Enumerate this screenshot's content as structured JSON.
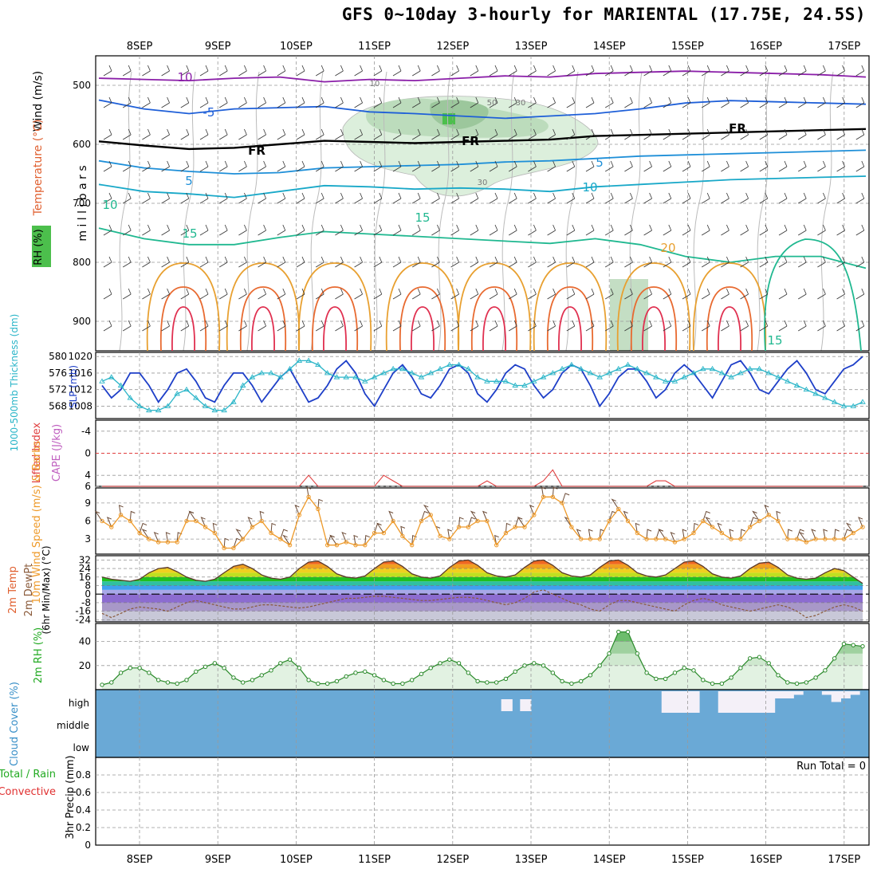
{
  "title": "GFS 0~10day 3-hourly for MARIENTAL (17.75E, 24.5S)",
  "dates": [
    "8SEP",
    "9SEP",
    "10SEP",
    "11SEP",
    "12SEP",
    "13SEP",
    "14SEP",
    "15SEP",
    "16SEP",
    "17SEP"
  ],
  "colors": {
    "grid": "#999999",
    "slp": "#1e3fc8",
    "thickness": "#2ab5c8",
    "lifted_index": "#e04040",
    "wind": "#ee9a2a",
    "barb": "#6b4a35",
    "rh_fill": "#a8d8a8",
    "cloud": "#6aa9d6",
    "precip_total": "#22aa22",
    "precip_conv": "#e03030"
  },
  "chart_data": [
    {
      "type": "heatmap",
      "name": "upper_air",
      "ylabel_parts": [
        "Wind (m/s)",
        "Temperature (°C)",
        "RH (%)"
      ],
      "ylabel_center": "m i l l i b a r s",
      "y_ticks": [
        "500",
        "600",
        "700",
        "800",
        "900"
      ],
      "ylim": [
        450,
        950
      ],
      "contour_labels": [
        "10",
        "-5",
        "FR",
        "FR",
        "FR",
        "5",
        "5",
        "10",
        "10",
        "15",
        "15",
        "15",
        "20",
        "50",
        "30",
        "30",
        "10"
      ],
      "temp_isotherms": [
        {
          "label": "-10",
          "level": [
            488,
            490,
            492,
            488,
            486,
            494,
            490,
            492,
            488,
            484,
            486,
            480,
            478,
            476,
            478,
            480,
            482,
            486
          ]
        },
        {
          "label": "-5",
          "level": [
            525,
            540,
            548,
            540,
            538,
            536,
            545,
            548,
            552,
            556,
            552,
            548,
            540,
            530,
            526,
            528,
            530,
            532
          ]
        },
        {
          "label": "0 (FR)",
          "level": [
            595,
            602,
            608,
            606,
            600,
            594,
            596,
            598,
            596,
            594,
            592,
            586,
            584,
            582,
            580,
            578,
            576,
            574
          ]
        },
        {
          "label": "5",
          "level": [
            628,
            640,
            646,
            650,
            648,
            640,
            638,
            636,
            634,
            630,
            628,
            624,
            620,
            618,
            616,
            614,
            612,
            610
          ]
        },
        {
          "label": "10",
          "level": [
            668,
            680,
            684,
            690,
            680,
            670,
            672,
            676,
            674,
            676,
            680,
            672,
            668,
            664,
            660,
            658,
            656,
            654
          ]
        },
        {
          "label": "15",
          "level": [
            742,
            760,
            770,
            770,
            758,
            748,
            752,
            756,
            760,
            764,
            768,
            760,
            770,
            790,
            800,
            790,
            790,
            810
          ]
        }
      ]
    },
    {
      "type": "line",
      "name": "slp_thickness",
      "ylabel": "SLP (mb)",
      "ylabel2": "1000-500mb Thickness (dm)",
      "y_ticks": [
        "1020",
        "1016",
        "1012",
        "1008"
      ],
      "y2_ticks": [
        "580",
        "576",
        "572",
        "568"
      ],
      "ylim": [
        1005,
        1021
      ],
      "series": [
        {
          "name": "SLP",
          "values": [
            1013,
            1010,
            1012,
            1016,
            1016,
            1013,
            1009,
            1012,
            1016,
            1017,
            1014,
            1010,
            1009,
            1013,
            1016,
            1016,
            1013,
            1009,
            1012,
            1015,
            1017,
            1013,
            1009,
            1010,
            1013,
            1017,
            1019,
            1016,
            1011,
            1008,
            1012,
            1016,
            1018,
            1015,
            1011,
            1010,
            1013,
            1017,
            1018,
            1016,
            1011,
            1009,
            1012,
            1016,
            1018,
            1017,
            1013,
            1010,
            1012,
            1016,
            1018,
            1017,
            1013,
            1008,
            1011,
            1015,
            1017,
            1017,
            1014,
            1010,
            1012,
            1016,
            1018,
            1016,
            1013,
            1010,
            1014,
            1018,
            1019,
            1016,
            1012,
            1011,
            1014,
            1017,
            1019,
            1016,
            1012,
            1011,
            1014,
            1017,
            1018,
            1020
          ]
        },
        {
          "name": "Thickness",
          "values": [
            575,
            576,
            574,
            571,
            569,
            568,
            568,
            569,
            572,
            573,
            571,
            569,
            568,
            568,
            570,
            574,
            576,
            577,
            577,
            576,
            578,
            580,
            580,
            579,
            577,
            576,
            576,
            576,
            575,
            576,
            577,
            578,
            578,
            577,
            576,
            577,
            578,
            579,
            579,
            578,
            576,
            575,
            575,
            575,
            574,
            574,
            575,
            576,
            577,
            578,
            579,
            578,
            577,
            576,
            577,
            578,
            579,
            578,
            577,
            576,
            575,
            575,
            576,
            577,
            578,
            578,
            577,
            576,
            577,
            578,
            578,
            577,
            576,
            575,
            574,
            573,
            572,
            571,
            570,
            569,
            569,
            570
          ]
        }
      ]
    },
    {
      "type": "line",
      "name": "instability",
      "ylabel": "Lifted Index",
      "ylabel2": "CAPE (J/kg)",
      "y_ticks": [
        "-4",
        "0",
        "4",
        "6"
      ],
      "ylim": [
        -6,
        6
      ],
      "series": [
        {
          "name": "Lifted Index",
          "values": [
            6,
            6,
            6,
            6,
            6,
            6,
            6,
            6,
            6,
            6,
            6,
            6,
            6,
            6,
            6,
            6,
            6,
            6,
            6,
            6,
            6,
            6,
            4,
            6,
            6,
            6,
            6,
            6,
            6,
            6,
            4,
            5,
            6,
            6,
            6,
            6,
            6,
            6,
            6,
            6,
            6,
            5,
            6,
            6,
            6,
            6,
            6,
            5,
            3,
            6,
            6,
            6,
            6,
            6,
            6,
            6,
            6,
            6,
            6,
            5,
            5,
            6,
            6,
            6,
            6,
            6,
            6,
            6,
            6,
            6,
            6,
            6,
            6,
            6,
            6,
            6,
            6,
            6,
            6,
            6,
            6,
            6
          ]
        }
      ]
    },
    {
      "type": "line",
      "name": "wind10m",
      "ylabel": "10m Wind Speed (m/s) & Barbs",
      "y_ticks": [
        "9",
        "6",
        "3"
      ],
      "ylim": [
        0.5,
        11.5
      ],
      "series": [
        {
          "name": "Wind Speed",
          "values": [
            6,
            5,
            7,
            6,
            4,
            3,
            2.5,
            2.5,
            2.5,
            6,
            6,
            5,
            4,
            1.5,
            1.5,
            3,
            5,
            6,
            4,
            3,
            2,
            7,
            10,
            8,
            2,
            2,
            2.5,
            2,
            2,
            4,
            4,
            6,
            3.5,
            2,
            6,
            7,
            3.5,
            3,
            5,
            5,
            6,
            6,
            2,
            4,
            5,
            5,
            7,
            10,
            10,
            9,
            5,
            3,
            3,
            3,
            6,
            8,
            6,
            4,
            3,
            3,
            3,
            2.5,
            3,
            4,
            6,
            5,
            4,
            3,
            3,
            5,
            6,
            7,
            6,
            3,
            3,
            2.5,
            3,
            3,
            3,
            3,
            4,
            5
          ]
        }
      ]
    },
    {
      "type": "area",
      "name": "temp2m",
      "ylabel": "2m Temp",
      "ylabel2": "2m DewPt",
      "ylabel3": "(6hr Min/Max) (°C)",
      "y_ticks": [
        "32",
        "24",
        "16",
        "8",
        "0",
        "-8",
        "-16",
        "-24"
      ],
      "ylim": [
        -26,
        36
      ],
      "series": [
        {
          "name": "2m Temp",
          "values": [
            16,
            14,
            13,
            12,
            14,
            20,
            24,
            25,
            21,
            16,
            13,
            12,
            14,
            20,
            26,
            28,
            24,
            18,
            15,
            14,
            16,
            24,
            30,
            31,
            26,
            19,
            16,
            15,
            17,
            24,
            30,
            31,
            26,
            19,
            16,
            15,
            17,
            25,
            31,
            32,
            27,
            20,
            17,
            16,
            18,
            25,
            31,
            32,
            27,
            20,
            17,
            16,
            18,
            25,
            31,
            32,
            27,
            20,
            17,
            16,
            18,
            24,
            30,
            31,
            26,
            19,
            16,
            15,
            17,
            24,
            29,
            30,
            25,
            18,
            15,
            14,
            15,
            20,
            24,
            22,
            16,
            10
          ]
        },
        {
          "name": "2m DewPt",
          "values": [
            -18,
            -22,
            -18,
            -14,
            -12,
            -13,
            -14,
            -16,
            -12,
            -8,
            -6,
            -8,
            -10,
            -12,
            -14,
            -14,
            -12,
            -10,
            -10,
            -11,
            -12,
            -13,
            -12,
            -10,
            -8,
            -6,
            -4,
            -4,
            -3,
            -2,
            -2,
            -3,
            -4,
            -5,
            -6,
            -6,
            -5,
            -4,
            -3,
            -3,
            -4,
            -6,
            -8,
            -10,
            -8,
            -4,
            2,
            4,
            0,
            -4,
            -8,
            -10,
            -14,
            -16,
            -10,
            -6,
            -6,
            -8,
            -10,
            -12,
            -14,
            -16,
            -10,
            -6,
            -4,
            -6,
            -10,
            -12,
            -14,
            -16,
            -14,
            -12,
            -10,
            -12,
            -16,
            -22,
            -20,
            -16,
            -12,
            -10,
            -12,
            -16
          ]
        }
      ]
    },
    {
      "type": "area",
      "name": "rh2m",
      "ylabel": "2m RH (%)",
      "y_ticks": [
        "40",
        "20"
      ],
      "ylim": [
        0,
        55
      ],
      "series": [
        {
          "name": "2m RH",
          "values": [
            4,
            6,
            14,
            18,
            18,
            14,
            8,
            6,
            5,
            8,
            15,
            19,
            22,
            18,
            10,
            6,
            8,
            12,
            16,
            22,
            25,
            18,
            8,
            5,
            5,
            7,
            11,
            14,
            15,
            12,
            8,
            5,
            5,
            8,
            13,
            18,
            22,
            25,
            22,
            14,
            7,
            6,
            6,
            9,
            15,
            20,
            22,
            20,
            14,
            7,
            5,
            7,
            12,
            20,
            30,
            48,
            48,
            30,
            14,
            9,
            9,
            14,
            18,
            16,
            8,
            5,
            5,
            10,
            18,
            26,
            27,
            22,
            12,
            6,
            5,
            6,
            10,
            16,
            26,
            38,
            37,
            36
          ]
        }
      ]
    },
    {
      "type": "bar",
      "name": "cloud_cover",
      "ylabel": "Cloud Cover (%)",
      "y_ticks": [
        "high",
        "middle",
        "low"
      ],
      "series": [
        {
          "name": "high",
          "values": [
            0,
            0,
            0,
            0,
            0,
            0,
            0,
            0,
            0,
            0,
            0,
            0,
            0,
            0,
            0,
            0,
            0,
            0,
            0,
            0,
            0,
            0,
            0,
            0,
            0,
            0,
            0,
            0,
            0,
            0,
            0,
            0,
            0,
            0,
            0,
            0,
            0,
            0,
            0,
            0,
            0,
            0,
            0,
            0,
            0,
            0,
            0,
            0,
            0,
            0,
            0,
            0,
            0,
            0,
            0,
            0,
            0,
            0,
            0,
            0,
            30,
            30,
            30,
            30,
            0,
            0,
            30,
            30,
            30,
            30,
            30,
            30,
            10,
            10,
            5,
            0,
            0,
            5,
            15,
            10,
            5,
            0
          ]
        },
        {
          "name": "high_spots",
          "values": [
            0,
            0,
            0,
            0,
            0,
            0,
            0,
            0,
            0,
            0,
            0,
            0,
            0,
            0,
            0,
            0,
            0,
            0,
            0,
            0,
            0,
            0,
            0,
            0,
            0,
            0,
            0,
            0,
            0,
            0,
            0,
            0,
            0,
            0,
            0,
            0,
            0,
            0,
            0,
            0,
            0,
            0,
            0,
            15,
            0,
            15,
            0,
            0,
            0,
            0,
            0,
            0,
            0,
            0,
            0,
            0,
            0,
            0,
            0,
            0,
            0,
            0,
            0,
            0,
            0,
            0,
            0,
            0,
            0,
            0,
            0,
            0,
            0,
            0,
            0,
            0,
            0,
            0,
            0,
            0,
            0,
            0
          ]
        }
      ]
    },
    {
      "type": "bar",
      "name": "precip",
      "ylabel": "3hr Precip (mm)",
      "legend": [
        "Total / Rain",
        "Convective"
      ],
      "annotation": "Run Total = 0",
      "y_ticks": [
        "0.8",
        "0.6",
        "0.4",
        "0.2",
        "0"
      ],
      "ylim": [
        0,
        1.0
      ],
      "series": [
        {
          "name": "Total",
          "values": [
            0,
            0,
            0,
            0,
            0,
            0,
            0,
            0,
            0,
            0,
            0,
            0,
            0,
            0,
            0,
            0,
            0,
            0,
            0,
            0,
            0,
            0,
            0,
            0,
            0,
            0,
            0,
            0,
            0,
            0,
            0,
            0,
            0,
            0,
            0,
            0,
            0,
            0,
            0,
            0,
            0,
            0,
            0,
            0,
            0,
            0,
            0,
            0,
            0,
            0,
            0,
            0,
            0,
            0,
            0,
            0,
            0,
            0,
            0,
            0,
            0,
            0,
            0,
            0,
            0,
            0,
            0,
            0,
            0,
            0,
            0,
            0,
            0,
            0,
            0,
            0,
            0,
            0,
            0,
            0,
            0,
            0
          ]
        }
      ]
    }
  ]
}
